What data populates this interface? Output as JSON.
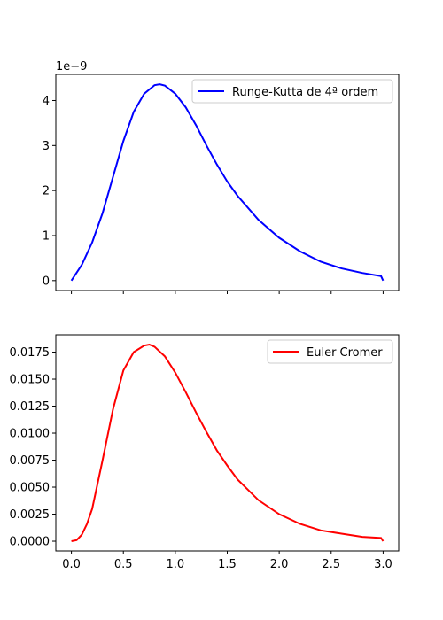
{
  "chart_data": [
    {
      "type": "line",
      "offset_label": "1e−9",
      "ylim": [
        -0.22,
        4.58
      ],
      "yticks": [
        0,
        1,
        2,
        3,
        4
      ],
      "ytick_labels": [
        "0",
        "1",
        "2",
        "3",
        "4"
      ],
      "xlim": [
        -0.15,
        3.15
      ],
      "xticks": [
        0.0,
        0.5,
        1.0,
        1.5,
        2.0,
        2.5,
        3.0
      ],
      "xtick_labels": [],
      "legend_position": "top-right",
      "series": [
        {
          "name": "Runge-Kutta de 4ª ordem",
          "color": "#0000ff",
          "x": [
            0,
            0.1,
            0.2,
            0.3,
            0.4,
            0.5,
            0.6,
            0.7,
            0.8,
            0.85,
            0.9,
            1.0,
            1.1,
            1.2,
            1.3,
            1.4,
            1.5,
            1.6,
            1.8,
            2.0,
            2.2,
            2.4,
            2.6,
            2.8,
            2.98,
            3.0
          ],
          "y": [
            0.0,
            0.35,
            0.85,
            1.5,
            2.3,
            3.1,
            3.75,
            4.15,
            4.34,
            4.36,
            4.33,
            4.15,
            3.85,
            3.45,
            3.0,
            2.58,
            2.2,
            1.88,
            1.35,
            0.95,
            0.65,
            0.42,
            0.27,
            0.17,
            0.1,
            0.0
          ]
        }
      ]
    },
    {
      "type": "line",
      "ylim": [
        -0.0009,
        0.0191
      ],
      "yticks": [
        0.0,
        0.0025,
        0.005,
        0.0075,
        0.01,
        0.0125,
        0.015,
        0.0175
      ],
      "ytick_labels": [
        "0.0000",
        "0.0025",
        "0.0050",
        "0.0075",
        "0.0100",
        "0.0125",
        "0.0150",
        "0.0175"
      ],
      "xlim": [
        -0.15,
        3.15
      ],
      "xticks": [
        0.0,
        0.5,
        1.0,
        1.5,
        2.0,
        2.5,
        3.0
      ],
      "xtick_labels": [
        "0.0",
        "0.5",
        "1.0",
        "1.5",
        "2.0",
        "2.5",
        "3.0"
      ],
      "legend_position": "top-right",
      "series": [
        {
          "name": "Euler Cromer",
          "color": "#ff0000",
          "x": [
            0,
            0.05,
            0.1,
            0.15,
            0.2,
            0.3,
            0.4,
            0.5,
            0.6,
            0.7,
            0.75,
            0.8,
            0.9,
            1.0,
            1.1,
            1.2,
            1.3,
            1.4,
            1.5,
            1.6,
            1.8,
            2.0,
            2.2,
            2.4,
            2.6,
            2.8,
            2.98,
            3.0
          ],
          "y": [
            0.0,
            0.0001,
            0.0006,
            0.0016,
            0.003,
            0.0075,
            0.0122,
            0.0158,
            0.0175,
            0.0181,
            0.0182,
            0.018,
            0.0171,
            0.0156,
            0.0138,
            0.0119,
            0.0101,
            0.0084,
            0.007,
            0.0057,
            0.0038,
            0.0025,
            0.0016,
            0.001,
            0.0007,
            0.0004,
            0.0003,
            0.0
          ]
        }
      ]
    }
  ]
}
